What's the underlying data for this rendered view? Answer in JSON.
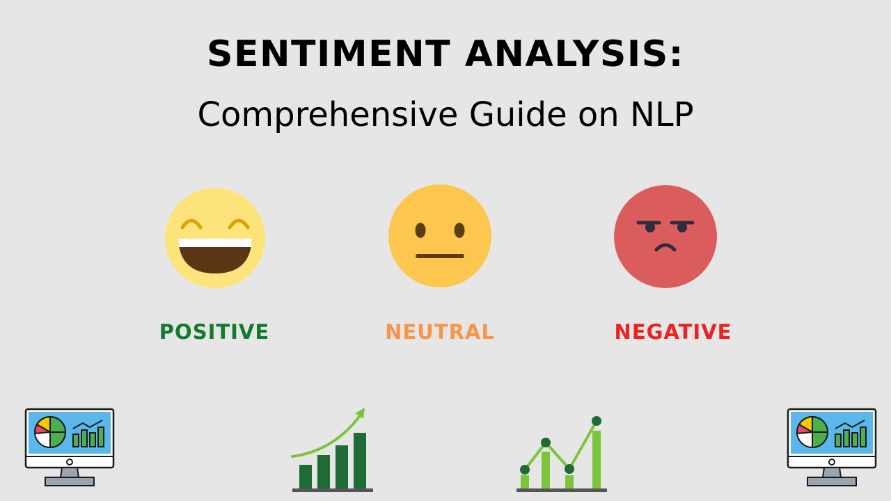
{
  "header": {
    "title": "SENTIMENT ANALYSIS:",
    "subtitle": "Comprehensive Guide on NLP"
  },
  "sentiments": [
    {
      "label": "POSITIVE",
      "color": "#137a2e",
      "icon": "laughing-face-icon"
    },
    {
      "label": "NEUTRAL",
      "color": "#f7964a",
      "icon": "neutral-face-icon"
    },
    {
      "label": "NEGATIVE",
      "color": "#ee2020",
      "icon": "angry-face-icon"
    }
  ],
  "decorations": {
    "left_icon": "monitor-dashboard-icon",
    "center_left_icon": "growth-bar-chart-icon",
    "center_right_icon": "line-bar-chart-icon",
    "right_icon": "monitor-dashboard-icon"
  }
}
